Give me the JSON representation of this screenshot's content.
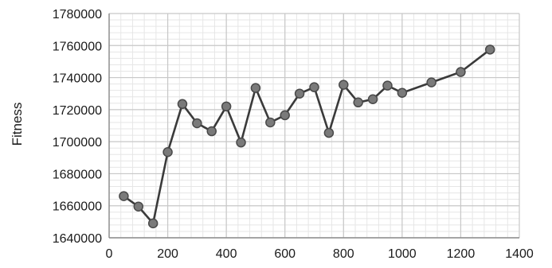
{
  "chart_data": {
    "type": "line",
    "title": "",
    "xlabel": "",
    "ylabel": "Fitness",
    "xlim": [
      0,
      1400
    ],
    "ylim": [
      1640000,
      1780000
    ],
    "x_ticks": [
      0,
      200,
      400,
      600,
      800,
      1000,
      1200,
      1400
    ],
    "y_ticks": [
      1640000,
      1660000,
      1680000,
      1700000,
      1720000,
      1740000,
      1760000,
      1780000
    ],
    "x_tick_labels": [
      "0",
      "200",
      "400",
      "600",
      "800",
      "1000",
      "1200",
      "1400"
    ],
    "y_tick_labels": [
      "1640000",
      "1660000",
      "1680000",
      "1700000",
      "1720000",
      "1740000",
      "1760000",
      "1780000"
    ],
    "grid": true,
    "minor_grid": true,
    "legend": "none",
    "colors": {
      "line": "#3a3a3a",
      "marker_fill": "#7a7a7a",
      "marker_stroke": "#4a4a4a",
      "major_grid": "#c8c8c8",
      "minor_grid": "#e6e6e6",
      "axis": "#8c8c8c"
    },
    "series": [
      {
        "x": [
          50,
          100,
          150,
          200,
          250,
          300,
          350,
          400,
          450,
          500,
          550,
          600,
          650,
          700,
          750,
          800,
          850,
          900,
          950,
          1000,
          1100,
          1200,
          1300
        ],
        "y": [
          1666000,
          1659500,
          1649000,
          1693500,
          1723500,
          1711500,
          1706500,
          1722000,
          1699500,
          1733500,
          1712000,
          1716500,
          1730000,
          1734000,
          1705500,
          1735500,
          1724500,
          1726500,
          1735000,
          1730500,
          1737000,
          1743500,
          1757500
        ]
      }
    ]
  }
}
